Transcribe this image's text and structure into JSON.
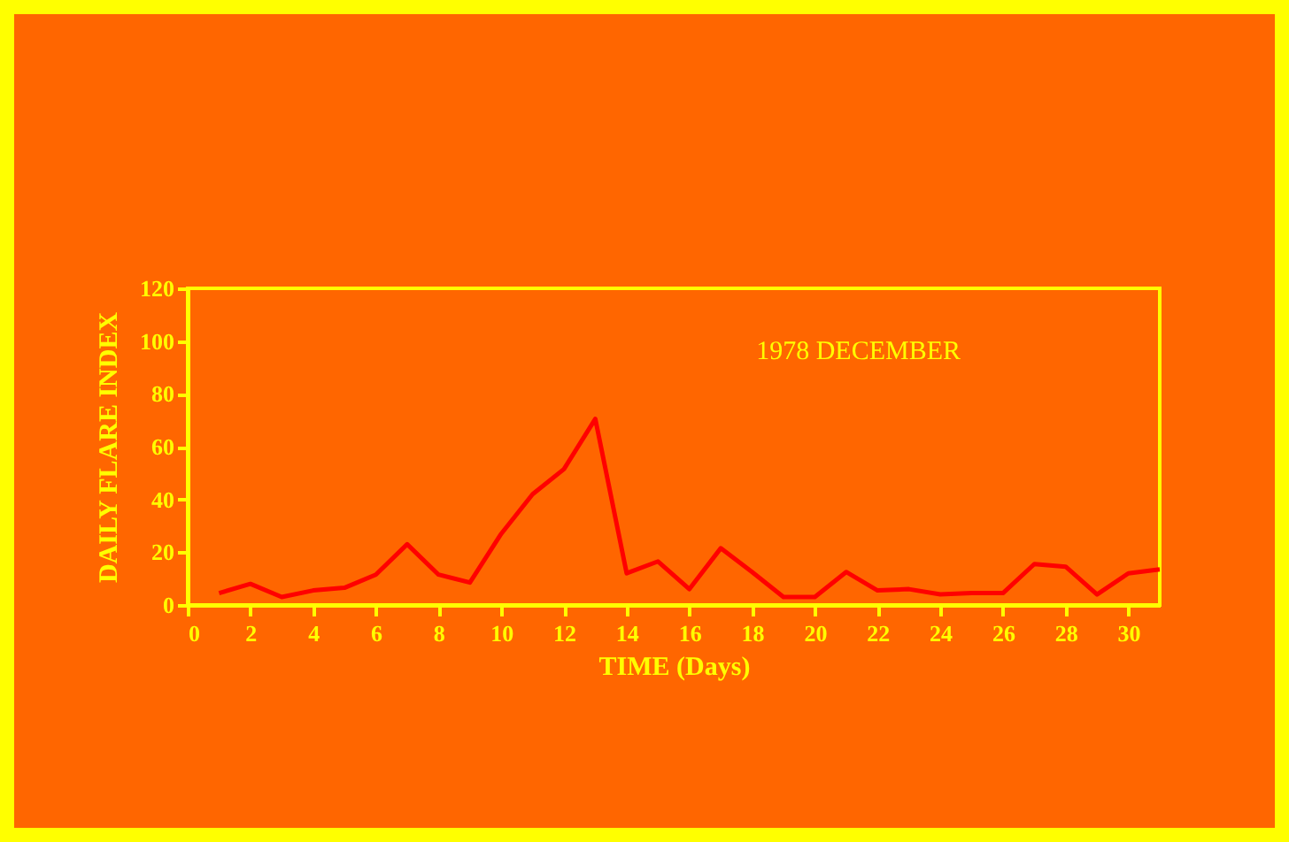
{
  "chart_data": {
    "type": "line",
    "xlabel": "TIME (Days)",
    "ylabel": "DAILY FLARE INDEX",
    "annotations": [
      "1978 DECEMBER"
    ],
    "x": [
      1,
      2,
      3,
      4,
      5,
      6,
      7,
      8,
      9,
      10,
      11,
      12,
      13,
      14,
      15,
      16,
      17,
      18,
      19,
      20,
      21,
      22,
      23,
      24,
      25,
      26,
      27,
      28,
      29,
      30,
      31
    ],
    "series": [
      {
        "color": "#ff0000",
        "values": [
          4.5,
          8,
          3,
          5.5,
          6.5,
          11.5,
          23,
          11.5,
          8.5,
          27,
          42,
          51.5,
          70.5,
          12,
          16.5,
          6,
          21.5,
          12.5,
          3,
          3,
          12.5,
          5.5,
          6,
          4,
          4.5,
          4.5,
          15.5,
          14.5,
          4,
          12,
          13.5
        ]
      }
    ],
    "xlim": [
      0,
      31
    ],
    "xticks": [
      0,
      2,
      4,
      6,
      8,
      10,
      12,
      14,
      16,
      18,
      20,
      22,
      24,
      26,
      28,
      30
    ],
    "ylim": [
      0,
      120
    ],
    "yticks": [
      0,
      20,
      40,
      60,
      80,
      100,
      120
    ],
    "grid": false,
    "marker": "none",
    "line_style": "solid"
  }
}
